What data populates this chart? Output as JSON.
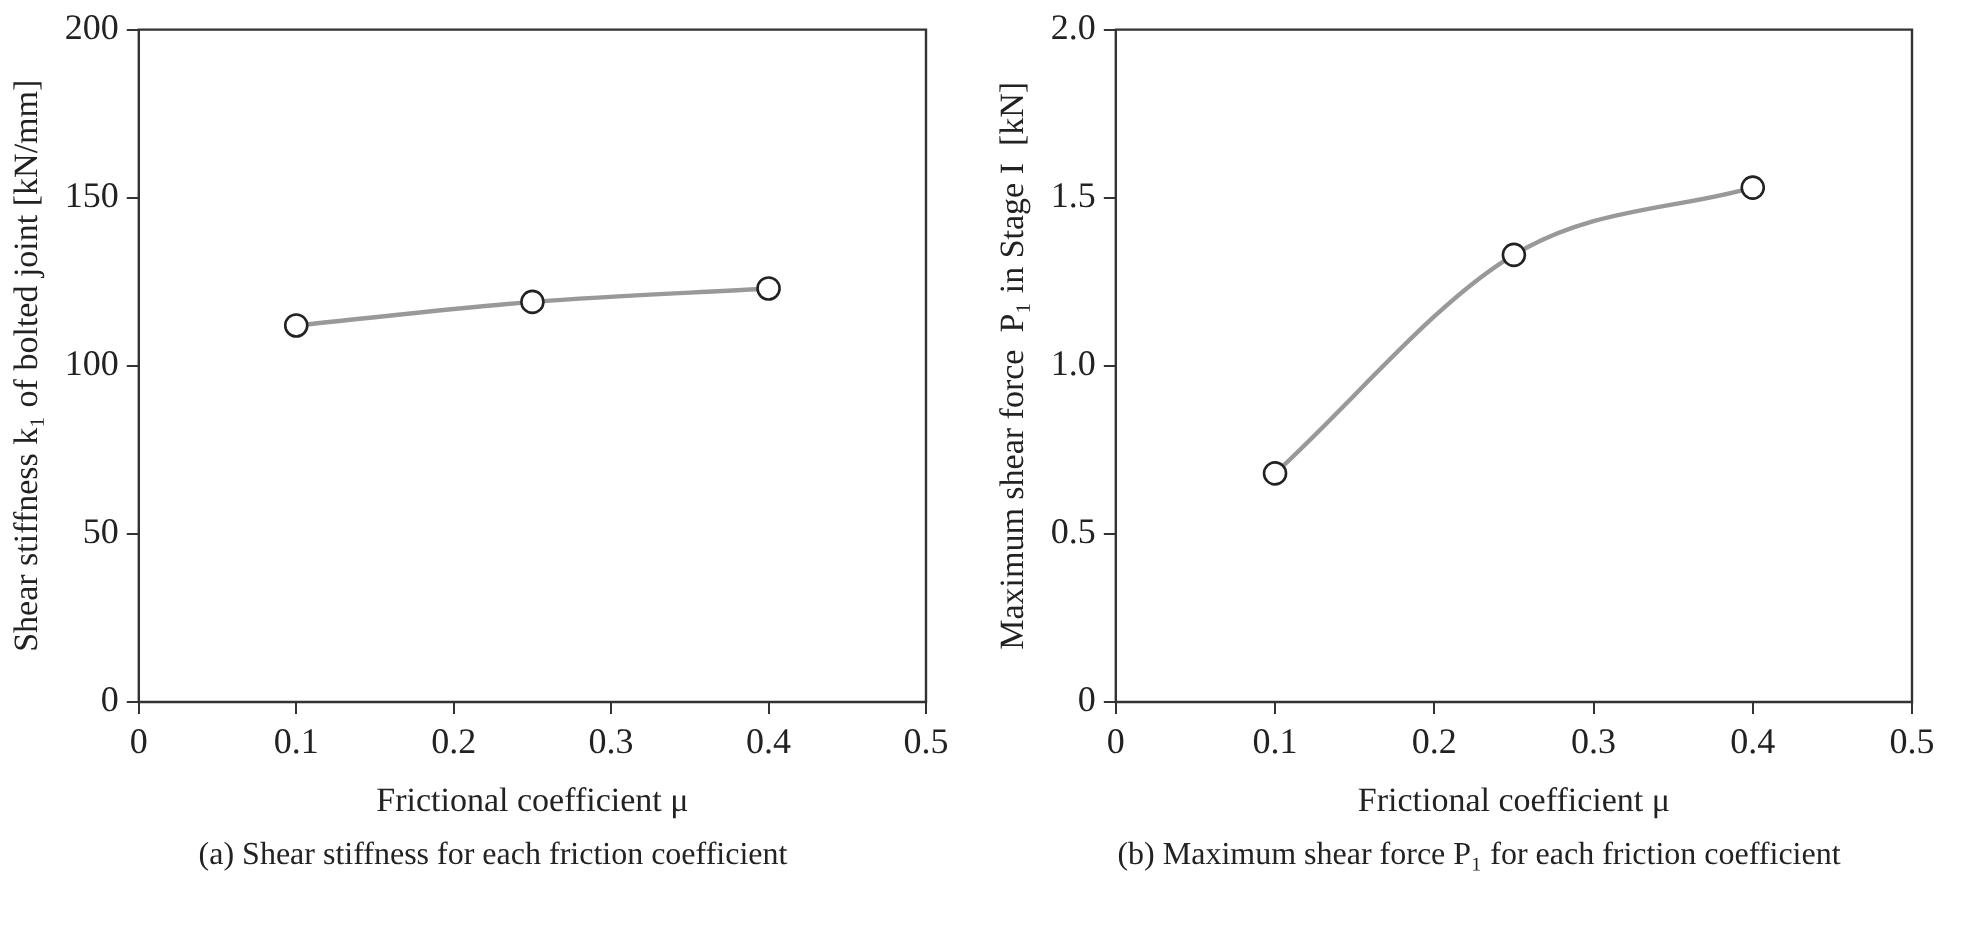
{
  "chart_data": [
    {
      "type": "line",
      "xlabel": "Frictional coefficient μ",
      "ylabel": "Shear stiffness k₁ of bolted joint [kN/mm]",
      "annotations": [
        "(a)  Shear stiffness for each friction coefficient"
      ],
      "x": [
        0.1,
        0.25,
        0.4
      ],
      "marker": "circle",
      "xlim": [
        0,
        0.5
      ],
      "xticks": [
        0,
        0.1,
        0.2,
        0.3,
        0.4,
        0.5
      ],
      "ylim": [
        0,
        200
      ],
      "yticks": [
        0,
        50,
        100,
        150,
        200
      ],
      "series": [
        {
          "color": "#999999",
          "values": [
            112,
            119,
            123
          ]
        }
      ]
    },
    {
      "type": "line",
      "xlabel": "Frictional coefficient μ",
      "ylabel": "Maximum shear force  P₁ in Stage I  [kN]",
      "annotations": [
        "(b)  Maximum shear force P₁ for each friction coefficient"
      ],
      "x": [
        0.1,
        0.25,
        0.4
      ],
      "marker": "circle",
      "xlim": [
        0,
        0.5
      ],
      "xticks": [
        0,
        0.1,
        0.2,
        0.3,
        0.4,
        0.5
      ],
      "ylim": [
        0,
        2.0
      ],
      "yticks": [
        0,
        {
          "value": 0.5,
          "label": "0.5"
        },
        {
          "value": 1,
          "label": "1.0"
        },
        {
          "value": 1.5,
          "label": "1.5"
        },
        {
          "value": 2,
          "label": "2.0"
        }
      ],
      "series": [
        {
          "color": "#999999",
          "values": [
            0.68,
            1.33,
            1.53
          ]
        }
      ]
    }
  ]
}
